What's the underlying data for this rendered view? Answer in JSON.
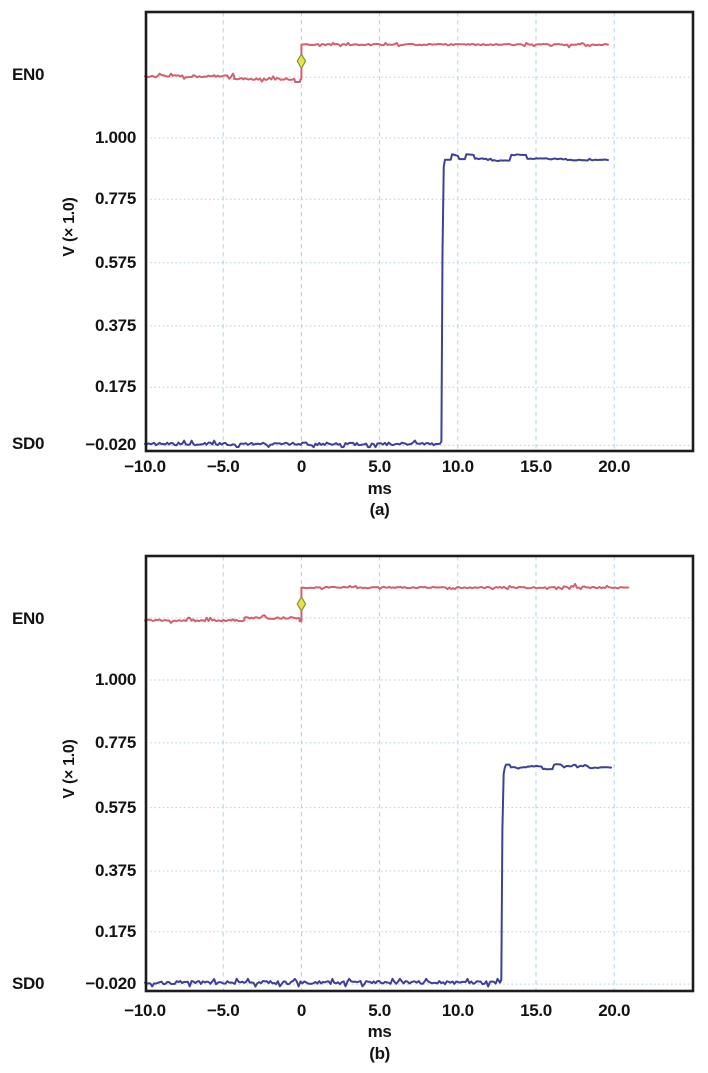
{
  "colors": {
    "background": "#ffffff",
    "text": "#141414",
    "border": "#1d1d1f",
    "grid": "#b5d2e0",
    "en0_trace": "#d65f6e",
    "sd0_trace": "#3f4198",
    "marker_fill": "#e3e44d",
    "marker_stroke": "#8f8f2e"
  },
  "chart_data": [
    {
      "type": "line",
      "caption": "(a)",
      "xlabel": "ms",
      "ylabel": "V (× 1.0)",
      "grid": "on",
      "x_range": [
        -10,
        25.1
      ],
      "x_ticks": [
        -10,
        -5,
        0,
        5,
        10,
        15,
        20
      ],
      "x_tick_labels": [
        "−10.0",
        "−5.0",
        "0",
        "5.0",
        "10.0",
        "15.0",
        "20.0"
      ],
      "y_tick_values": [
        1.0,
        0.775,
        0.575,
        0.375,
        0.175,
        -0.02
      ],
      "y_tick_labels": [
        "1.000",
        "0.775",
        "0.575",
        "0.375",
        "0.175",
        "−0.020"
      ],
      "marker": {
        "shape": "diamond",
        "x": 0,
        "y": 1.255
      },
      "series": [
        {
          "name": "EN0",
          "color": "#d65f6e",
          "points": [
            [
              -10,
              1.205
            ],
            [
              -4.3,
              1.205
            ],
            [
              -4.3,
              1.196
            ],
            [
              -0.45,
              1.196
            ],
            [
              -0.4,
              1.186
            ],
            [
              -0.1,
              1.186
            ],
            [
              -0.05,
              1.196
            ],
            [
              0,
              1.196
            ],
            [
              0,
              1.31
            ],
            [
              17.0,
              1.31
            ],
            [
              17.1,
              1.301
            ],
            [
              17.25,
              1.31
            ],
            [
              19.6,
              1.31
            ]
          ],
          "noise": [
            {
              "from": -10,
              "to": -0.55,
              "amp": 0.004
            },
            {
              "from": 0.3,
              "to": 16.8,
              "amp": 0.0025
            },
            {
              "from": 17.4,
              "to": 19.4,
              "amp": 0.0025
            }
          ]
        },
        {
          "name": "SD0",
          "color": "#3f4198",
          "points": [
            [
              -10,
              -0.015
            ],
            [
              8.85,
              -0.015
            ],
            [
              8.95,
              -0.007
            ],
            [
              9.02,
              0.62
            ],
            [
              9.1,
              0.905
            ],
            [
              9.18,
              0.928
            ],
            [
              9.55,
              0.928
            ],
            [
              9.63,
              0.946
            ],
            [
              10.0,
              0.941
            ],
            [
              10.1,
              0.93
            ],
            [
              10.45,
              0.93
            ],
            [
              10.55,
              0.946
            ],
            [
              11.0,
              0.944
            ],
            [
              11.1,
              0.931
            ],
            [
              12.1,
              0.931
            ],
            [
              12.2,
              0.925
            ],
            [
              13.3,
              0.925
            ],
            [
              13.42,
              0.944
            ],
            [
              14.35,
              0.944
            ],
            [
              14.45,
              0.931
            ],
            [
              16.9,
              0.931
            ],
            [
              17.0,
              0.927
            ],
            [
              19.6,
              0.927
            ]
          ],
          "noise": [
            {
              "from": -10,
              "to": 8.65,
              "amp": 0.005
            },
            {
              "from": 9.4,
              "to": 19.4,
              "amp": 0.002
            }
          ]
        }
      ]
    },
    {
      "type": "line",
      "caption": "(b)",
      "xlabel": "ms",
      "ylabel": "V (× 1.0)",
      "grid": "on",
      "x_range": [
        -10,
        25.1
      ],
      "x_ticks": [
        -10,
        -5,
        0,
        5,
        10,
        15,
        20
      ],
      "x_tick_labels": [
        "−10.0",
        "−5.0",
        "0",
        "5.0",
        "10.0",
        "15.0",
        "20.0"
      ],
      "y_tick_values": [
        1.0,
        0.775,
        0.575,
        0.375,
        0.175,
        -0.02
      ],
      "y_tick_labels": [
        "1.000",
        "0.775",
        "0.575",
        "0.375",
        "0.175",
        "−0.020"
      ],
      "marker": {
        "shape": "diamond",
        "x": 0,
        "y": 1.255
      },
      "series": [
        {
          "name": "EN0",
          "color": "#d65f6e",
          "points": [
            [
              -10,
              1.2
            ],
            [
              -3.65,
              1.2
            ],
            [
              -3.65,
              1.208
            ],
            [
              -0.15,
              1.208
            ],
            [
              -0.1,
              1.197
            ],
            [
              0,
              1.197
            ],
            [
              0,
              1.31
            ],
            [
              20.9,
              1.31
            ]
          ],
          "noise": [
            {
              "from": -10,
              "to": -0.3,
              "amp": 0.004
            },
            {
              "from": 0.3,
              "to": 20.7,
              "amp": 0.0025
            },
            {
              "from": 16.6,
              "to": 18.4,
              "amp": 0.006
            }
          ]
        },
        {
          "name": "SD0",
          "color": "#3f4198",
          "points": [
            [
              -10,
              -0.015
            ],
            [
              12.7,
              -0.015
            ],
            [
              12.78,
              -0.006
            ],
            [
              12.85,
              0.5
            ],
            [
              12.93,
              0.685
            ],
            [
              13.0,
              0.705
            ],
            [
              13.08,
              0.716
            ],
            [
              13.3,
              0.716
            ],
            [
              13.4,
              0.707
            ],
            [
              14.35,
              0.707
            ],
            [
              14.5,
              0.71
            ],
            [
              15.35,
              0.71
            ],
            [
              15.45,
              0.701
            ],
            [
              16.05,
              0.701
            ],
            [
              16.15,
              0.716
            ],
            [
              16.6,
              0.716
            ],
            [
              16.7,
              0.711
            ],
            [
              18.3,
              0.711
            ],
            [
              18.4,
              0.706
            ],
            [
              19.8,
              0.706
            ]
          ],
          "noise": [
            {
              "from": -10,
              "to": 12.55,
              "amp": 0.006
            },
            {
              "from": 13.25,
              "to": 19.6,
              "amp": 0.002
            }
          ]
        }
      ]
    }
  ]
}
